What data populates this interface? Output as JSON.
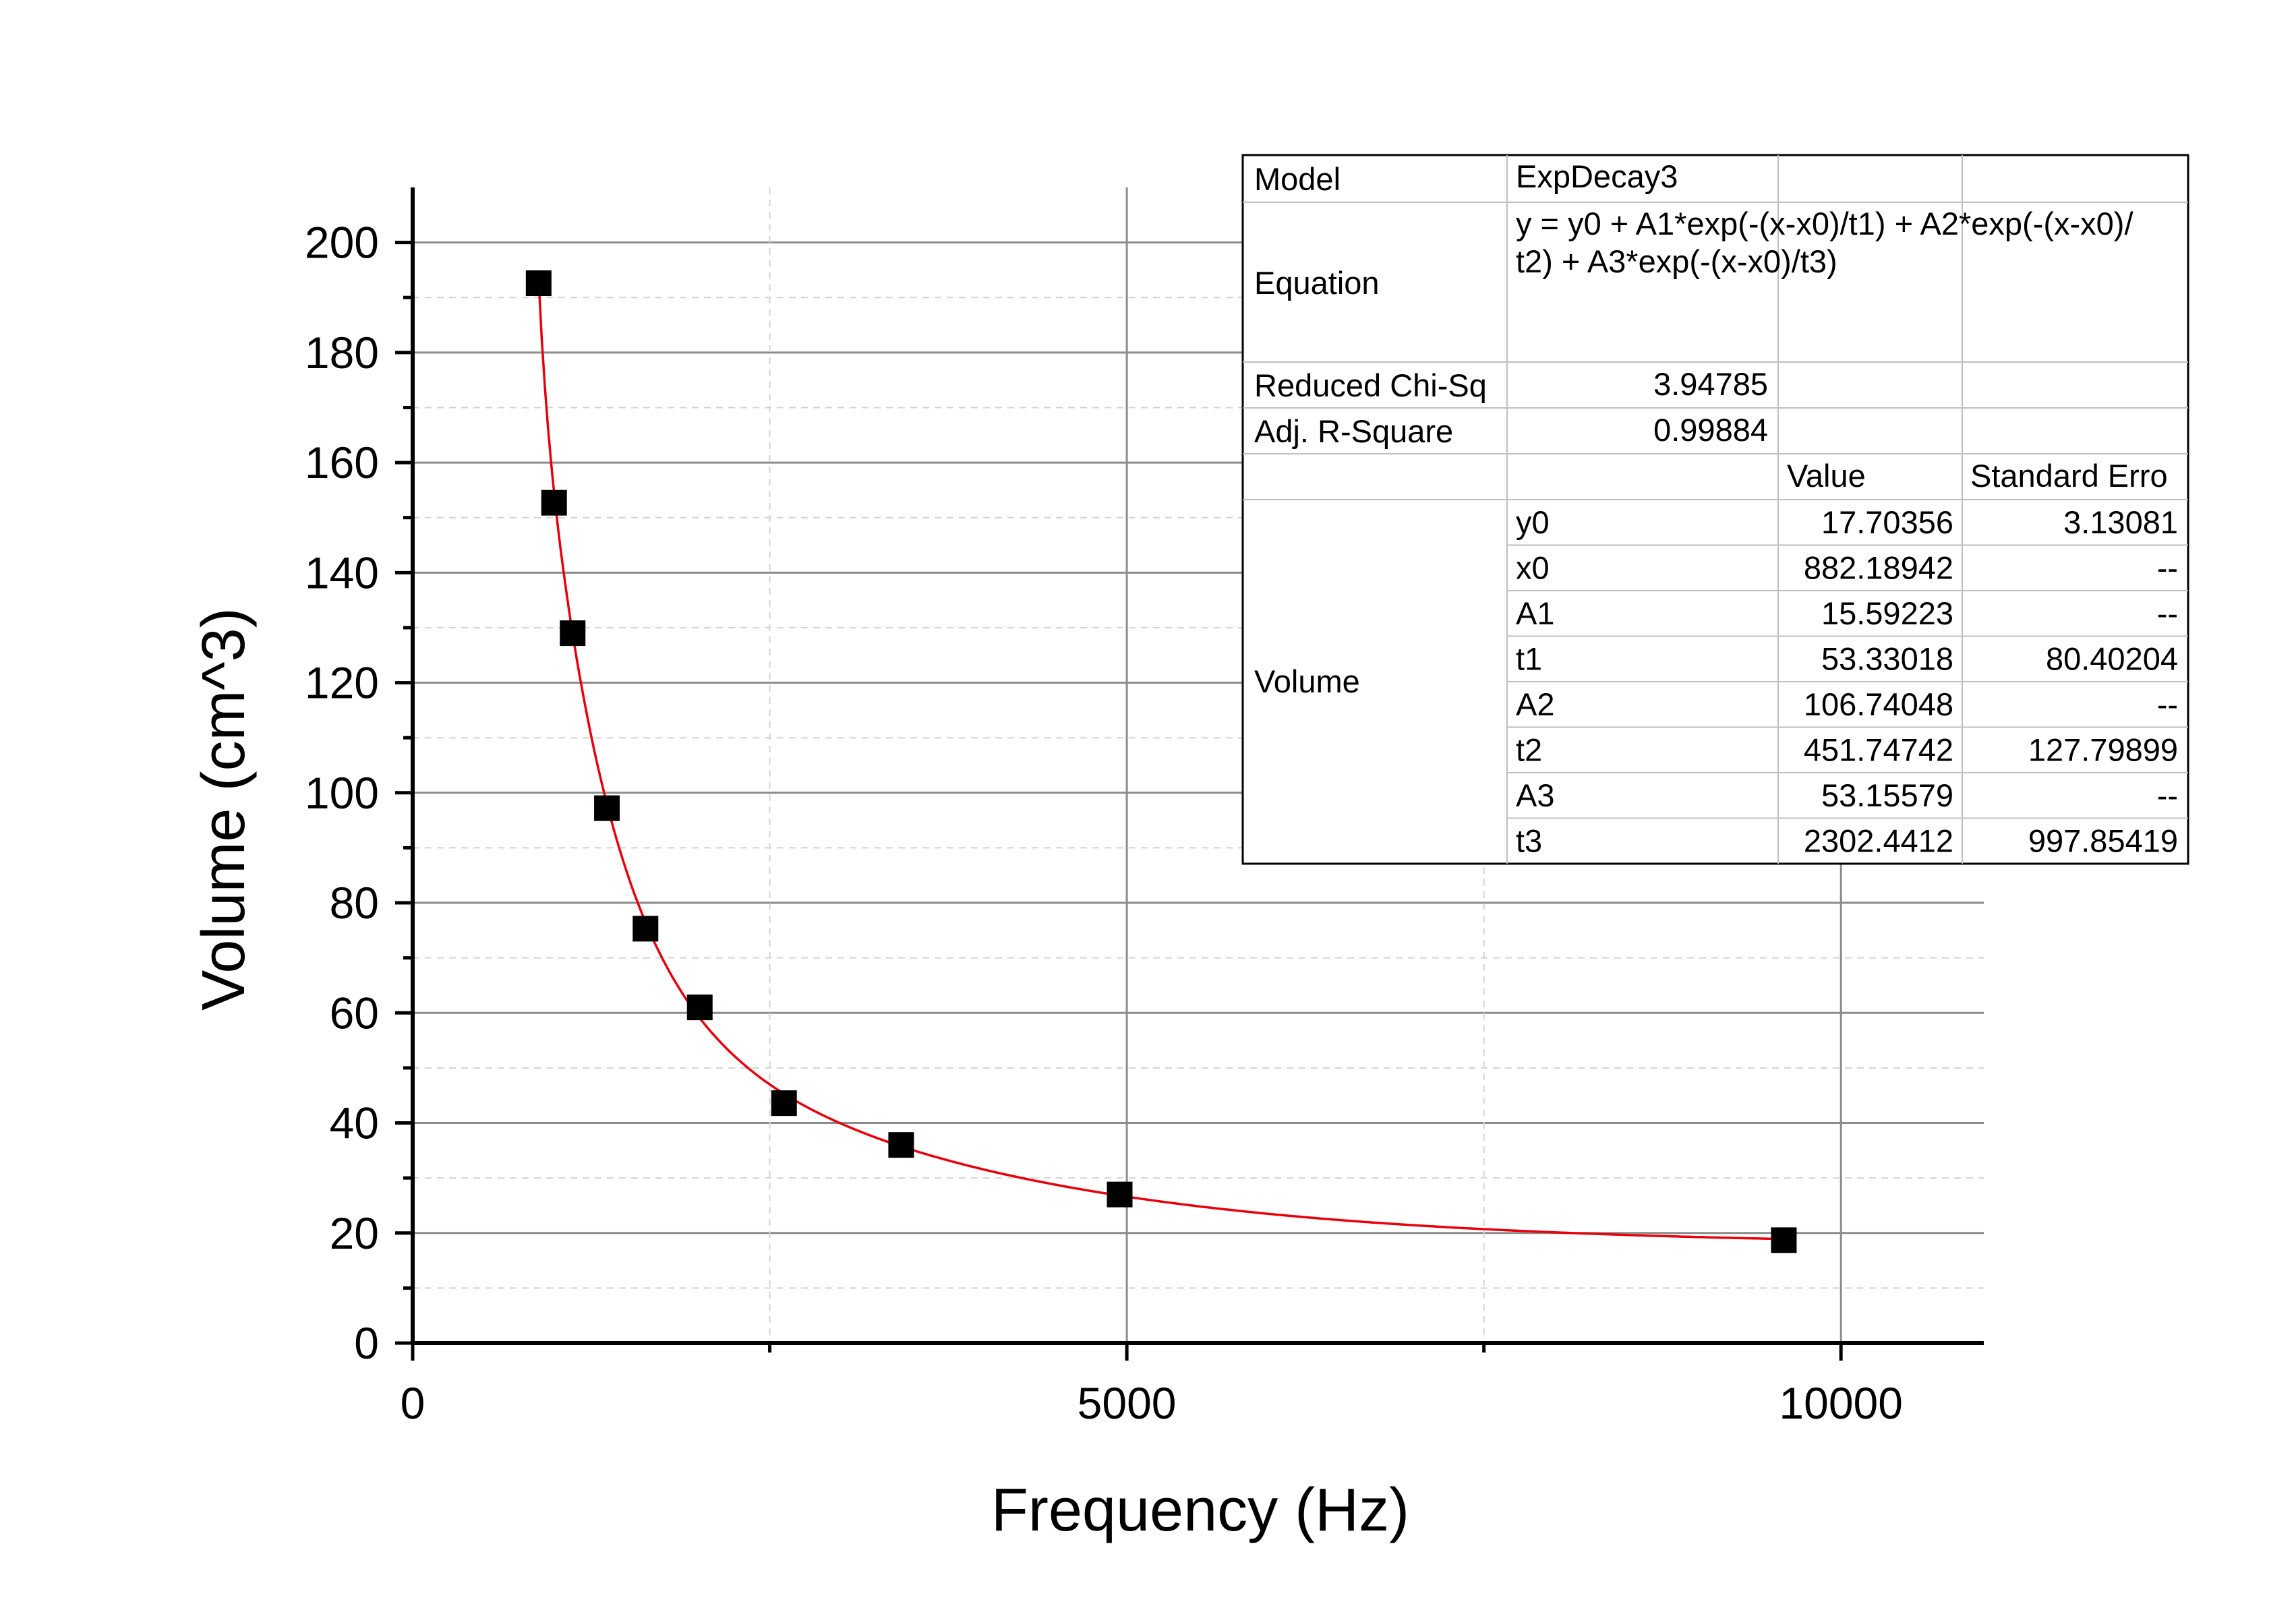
{
  "chart_data": {
    "type": "scatter",
    "xlabel": "Frequency (Hz)",
    "ylabel": "Volume (cm^3)",
    "xlim": [
      0,
      11000
    ],
    "ylim": [
      0,
      210
    ],
    "x_ticks": [
      0,
      5000,
      10000
    ],
    "y_ticks": [
      0,
      20,
      40,
      60,
      80,
      100,
      120,
      140,
      160,
      180,
      200
    ],
    "grid": true,
    "colors": {
      "points": "#000000",
      "fit": "#e8000b"
    },
    "series": [
      {
        "marker": "square",
        "x": [
          882,
          990,
          1120,
          1360,
          1630,
          2010,
          2600,
          3420,
          4950,
          9600
        ],
        "y": [
          192.6,
          152.7,
          129.0,
          97.2,
          75.3,
          61.0,
          43.6,
          36.0,
          27.0,
          18.7
        ]
      }
    ],
    "fit_table": {
      "rows": [
        {
          "c0": "Model",
          "c1": "ExpDecay3",
          "c2": "",
          "c3": ""
        },
        {
          "c0": "Equation",
          "c1": "y = y0 + A1*exp(-(x-x0)/t1) + A2*exp(-(x-x0)/",
          "c1b": "t2) + A3*exp(-(x-x0)/t3)",
          "c2": "",
          "c3": ""
        },
        {
          "c0": "Reduced Chi-Sq",
          "c1": "3.94785",
          "c2": "",
          "c3": ""
        },
        {
          "c0": "Adj. R-Square",
          "c1": "0.99884",
          "c2": "",
          "c3": ""
        },
        {
          "c0": "",
          "c1": "",
          "c2": "Value",
          "c3": "Standard Erro"
        }
      ],
      "group_label": "Volume",
      "params": [
        {
          "name": "y0",
          "value": "17.70356",
          "error": "3.13081"
        },
        {
          "name": "x0",
          "value": "882.18942",
          "error": "--"
        },
        {
          "name": "A1",
          "value": "15.59223",
          "error": "--"
        },
        {
          "name": "t1",
          "value": "53.33018",
          "error": "80.40204"
        },
        {
          "name": "A2",
          "value": "106.74048",
          "error": "--"
        },
        {
          "name": "t2",
          "value": "451.74742",
          "error": "127.79899"
        },
        {
          "name": "A3",
          "value": "53.15579",
          "error": "--"
        },
        {
          "name": "t3",
          "value": "2302.4412",
          "error": "997.85419"
        }
      ],
      "fit_params": {
        "y0": 17.70356,
        "x0": 882.18942,
        "A1": 15.59223,
        "t1": 53.33018,
        "A2": 106.74048,
        "t2": 451.74742,
        "A3": 53.15579,
        "t3": 2302.4412
      }
    }
  }
}
